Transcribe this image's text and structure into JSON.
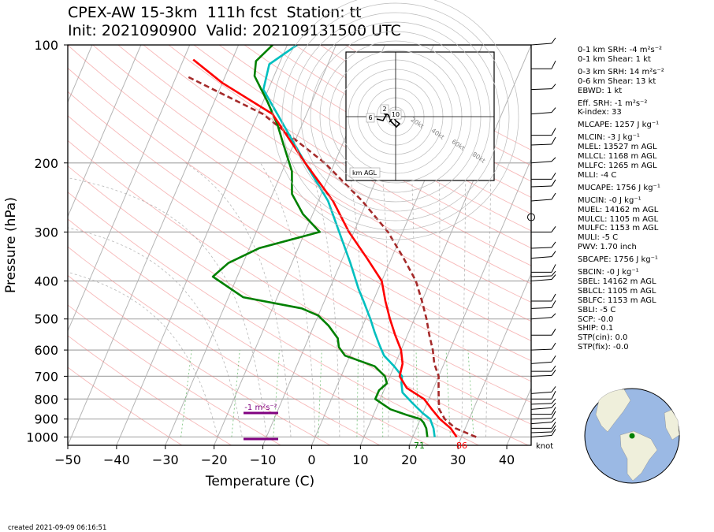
{
  "header": {
    "title_line1": "CPEX-AW 15-3km  111h fcst  Station: tt",
    "title_line2": "Init: 2021090900  Valid: 202109131500 UTC"
  },
  "chart_data": {
    "type": "skew-t",
    "xlabel": "Temperature (C)",
    "ylabel": "Pressure (hPa)",
    "x_ticks": [
      -50,
      -40,
      -30,
      -20,
      -10,
      0,
      10,
      20,
      30,
      40
    ],
    "y_ticks": [
      100,
      200,
      300,
      400,
      500,
      600,
      700,
      800,
      900,
      1000
    ],
    "xlim": [
      -50,
      45
    ],
    "ylim": [
      1050,
      100
    ],
    "y_scale": "log",
    "series": [
      {
        "key": "temperature",
        "color": "#ff0000",
        "points": [
          [
            29,
            1000
          ],
          [
            27,
            950
          ],
          [
            24,
            900
          ],
          [
            21.5,
            850
          ],
          [
            19,
            800
          ],
          [
            14.5,
            750
          ],
          [
            12,
            700
          ],
          [
            11.5,
            650
          ],
          [
            10,
            600
          ],
          [
            7.5,
            550
          ],
          [
            5,
            500
          ],
          [
            2.5,
            450
          ],
          [
            0,
            400
          ],
          [
            -5,
            350
          ],
          [
            -11,
            300
          ],
          [
            -17,
            250
          ],
          [
            -26,
            200
          ],
          [
            -37,
            150
          ],
          [
            -50,
            125
          ],
          [
            -58,
            109
          ]
        ]
      },
      {
        "key": "dewpoint",
        "color": "#008000",
        "points": [
          [
            23,
            1000
          ],
          [
            22,
            950
          ],
          [
            21,
            920
          ],
          [
            20,
            900
          ],
          [
            17,
            880
          ],
          [
            13,
            850
          ],
          [
            9,
            800
          ],
          [
            9,
            760
          ],
          [
            10,
            730
          ],
          [
            9,
            700
          ],
          [
            6,
            660
          ],
          [
            -1,
            620
          ],
          [
            -3,
            590
          ],
          [
            -4,
            560
          ],
          [
            -7,
            520
          ],
          [
            -10,
            490
          ],
          [
            -14,
            470
          ],
          [
            -27,
            440
          ],
          [
            -35,
            390
          ],
          [
            -33,
            360
          ],
          [
            -28,
            330
          ],
          [
            -17,
            300
          ],
          [
            -22,
            270
          ],
          [
            -26,
            240
          ],
          [
            -28,
            210
          ],
          [
            -32,
            180
          ],
          [
            -35,
            160
          ],
          [
            -39,
            140
          ],
          [
            -44,
            120
          ],
          [
            -45,
            110
          ],
          [
            -43,
            100
          ]
        ]
      },
      {
        "key": "wetbulb",
        "color": "#00bfbf",
        "points": [
          [
            24.5,
            1000
          ],
          [
            23.5,
            950
          ],
          [
            22,
            900
          ],
          [
            20,
            870
          ],
          [
            17,
            820
          ],
          [
            14,
            770
          ],
          [
            13,
            730
          ],
          [
            12.5,
            700
          ],
          [
            10,
            660
          ],
          [
            7,
            620
          ],
          [
            5,
            580
          ],
          [
            3,
            540
          ],
          [
            1,
            500
          ],
          [
            -2,
            450
          ],
          [
            -4,
            420
          ],
          [
            -8,
            360
          ],
          [
            -13,
            300
          ],
          [
            -18,
            250
          ],
          [
            -26,
            200
          ],
          [
            -36,
            150
          ],
          [
            -41,
            130
          ],
          [
            -42,
            112
          ],
          [
            -38,
            100
          ]
        ]
      },
      {
        "key": "parcel",
        "color": "#a52a2a",
        "points": [
          [
            33,
            1000
          ],
          [
            28,
            950
          ],
          [
            25,
            900
          ],
          [
            23,
            850
          ],
          [
            22,
            800
          ],
          [
            21,
            750
          ],
          [
            20,
            700
          ],
          [
            18,
            650
          ],
          [
            16.5,
            600
          ],
          [
            14.5,
            550
          ],
          [
            12.5,
            500
          ],
          [
            10,
            450
          ],
          [
            7,
            400
          ],
          [
            2.5,
            350
          ],
          [
            -3,
            300
          ],
          [
            -11,
            250
          ],
          [
            -22,
            200
          ],
          [
            -39,
            150
          ],
          [
            -58,
            120
          ]
        ]
      }
    ],
    "annotations": {
      "temperature_label": "86",
      "dewpoint_label": "71",
      "srh_marker_label": "-1 m²s⁻²",
      "wind_units": "knot",
      "hodograph": {
        "labels": [
          "2",
          "6",
          "10"
        ],
        "ring_labels": [
          "20kt",
          "40kt",
          "60kt",
          "80kt"
        ],
        "box_label": "km AGL"
      }
    },
    "wind_barb_pressures": [
      1000,
      975,
      950,
      925,
      900,
      875,
      850,
      825,
      800,
      775,
      700,
      680,
      650,
      600,
      550,
      500,
      470,
      450,
      400,
      390,
      380,
      350,
      330,
      300,
      250,
      230,
      220,
      200,
      180,
      170,
      150,
      130,
      115,
      100
    ],
    "calm_wind_pressure": 275,
    "grid": true
  },
  "indices": [
    {
      "text": "0-1 km SRH: -4 m²s⁻²"
    },
    {
      "text": "0-1 km Shear: 1 kt"
    },
    {
      "text": "0-3 km SRH: 14 m²s⁻²",
      "gap": true
    },
    {
      "text": "0-6 km Shear: 13 kt"
    },
    {
      "text": "EBWD: 1 kt"
    },
    {
      "text": "Eff. SRH: -1 m²s⁻²",
      "gap": true
    },
    {
      "text": "K-index: 33"
    },
    {
      "text": "MLCAPE: 1257 J kg⁻¹",
      "gap": true
    },
    {
      "text": "MLCIN: -3 J kg⁻¹",
      "gap": true
    },
    {
      "text": "MLEL: 13527 m AGL"
    },
    {
      "text": "MLLCL: 1168 m AGL"
    },
    {
      "text": "MLLFC: 1265 m AGL"
    },
    {
      "text": "MLLI: -4 C"
    },
    {
      "text": "MUCAPE: 1756 J kg⁻¹",
      "gap": true
    },
    {
      "text": "MUCIN: -0 J kg⁻¹",
      "gap": true
    },
    {
      "text": "MUEL: 14162 m AGL"
    },
    {
      "text": "MULCL: 1105 m AGL"
    },
    {
      "text": "MULFC: 1153 m AGL"
    },
    {
      "text": "MULI: -5 C"
    },
    {
      "text": "PWV: 1.70 inch"
    },
    {
      "text": "SBCAPE: 1756 J kg⁻¹",
      "gap": true
    },
    {
      "text": "SBCIN: -0 J kg⁻¹",
      "gap": true
    },
    {
      "text": "SBEL: 14162 m AGL"
    },
    {
      "text": "SBLCL: 1105 m AGL"
    },
    {
      "text": "SBLFC: 1153 m AGL"
    },
    {
      "text": "SBLI: -5 C"
    },
    {
      "text": "SCP: -0.0"
    },
    {
      "text": "SHIP: 0.1"
    },
    {
      "text": "STP(cin): 0.0"
    },
    {
      "text": "STP(fix): -0.0"
    }
  ],
  "footer": {
    "created": "created 2021-09-09 06:16:51"
  },
  "colors": {
    "temperature": "#ff0000",
    "dewpoint": "#008000",
    "wetbulb": "#00bfbf",
    "parcel": "#a52a2a",
    "srh_marker": "#800080",
    "globe_ocean": "#9bb9e4",
    "globe_land": "#efefdb",
    "station_dot": "#008000"
  }
}
